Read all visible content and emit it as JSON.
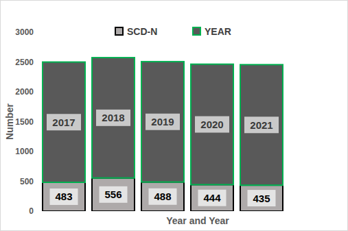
{
  "chart_data": {
    "type": "bar",
    "stacked": true,
    "data_labels": true,
    "grid": false,
    "legend": "top",
    "tick_labels": "y",
    "x_label": "Year and Year",
    "y_label": "Number",
    "categories": [
      null,
      null,
      null,
      null,
      null
    ],
    "series": [
      {
        "name": "SCD-N",
        "color": "#aeaaaa",
        "values": [
          483,
          556,
          488,
          444,
          435
        ]
      },
      {
        "name": "YEAR",
        "color": "#595959",
        "values": [
          2017,
          2018,
          2019,
          2020,
          2021
        ]
      }
    ],
    "ylim": [
      0,
      3000
    ],
    "yticks": [
      0,
      500,
      1000,
      1500,
      2000,
      2500,
      3000
    ]
  }
}
